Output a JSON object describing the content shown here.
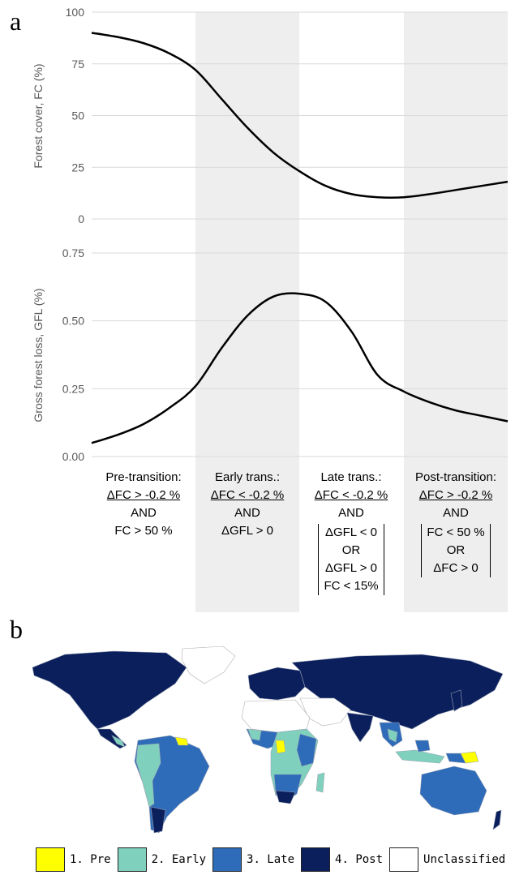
{
  "panel_a": {
    "letter": "a",
    "chart_data": [
      {
        "type": "line",
        "ylabel": "Forest cover, FC (%)",
        "ylim": [
          0,
          100
        ],
        "yticks": [
          "0",
          "25",
          "50",
          "75",
          "100"
        ],
        "series": [
          {
            "x": [
              0,
              0.25,
              0.5,
              0.75,
              1.0,
              1.25,
              1.5,
              1.75,
              2.0,
              2.25,
              2.5,
              2.75,
              3.0,
              3.25,
              3.5,
              3.75,
              4.0
            ],
            "values": [
              90,
              88,
              85,
              80,
              72,
              58,
              44,
              32,
              23,
              16,
              12,
              10.5,
              10.5,
              12,
              14,
              16,
              18
            ]
          }
        ],
        "grid": true
      },
      {
        "type": "line",
        "ylabel": "Gross forest loss, GFL (%)",
        "ylim": [
          0,
          0.75
        ],
        "yticks": [
          "0.00",
          "0.25",
          "0.50",
          "0.75"
        ],
        "series": [
          {
            "x": [
              0,
              0.25,
              0.5,
              0.75,
              1.0,
              1.25,
              1.5,
              1.75,
              2.0,
              2.25,
              2.5,
              2.75,
              3.0,
              3.25,
              3.5,
              3.75,
              4.0
            ],
            "values": [
              0.05,
              0.08,
              0.12,
              0.18,
              0.26,
              0.4,
              0.52,
              0.59,
              0.6,
              0.57,
              0.46,
              0.3,
              0.24,
              0.2,
              0.17,
              0.15,
              0.13
            ]
          }
        ],
        "grid": true
      }
    ],
    "stages": [
      {
        "title": "Pre-transition:",
        "cond1": "ΔFC > -0.2 %",
        "and": "AND",
        "cond2": "FC > 50 %"
      },
      {
        "title": "Early trans.:",
        "cond1": "ΔFC < -0.2 %",
        "and": "AND",
        "cond2": "ΔGFL > 0"
      },
      {
        "title": "Late trans.:",
        "cond1": "ΔFC < -0.2 %",
        "and": "AND",
        "b1": "ΔGFL < 0",
        "or": "OR",
        "b2": "ΔGFL > 0",
        "b3": "FC < 15%"
      },
      {
        "title": "Post-transition:",
        "cond1": "ΔFC > -0.2 %",
        "and": "AND",
        "b1": "FC < 50 %",
        "or": "OR",
        "b2": "ΔFC > 0"
      }
    ]
  },
  "panel_b": {
    "letter": "b",
    "colors": {
      "pre": "#ffff00",
      "early": "#7fd1bd",
      "late": "#2e6bb8",
      "post": "#0b1f5c",
      "unclassified": "#ffffff"
    },
    "legend": [
      {
        "label": "1. Pre",
        "color": "#ffff00"
      },
      {
        "label": "2. Early",
        "color": "#7fd1bd"
      },
      {
        "label": "3. Late",
        "color": "#2e6bb8"
      },
      {
        "label": "4. Post",
        "color": "#0b1f5c"
      },
      {
        "label": "Unclassified",
        "color": "#ffffff"
      }
    ]
  }
}
